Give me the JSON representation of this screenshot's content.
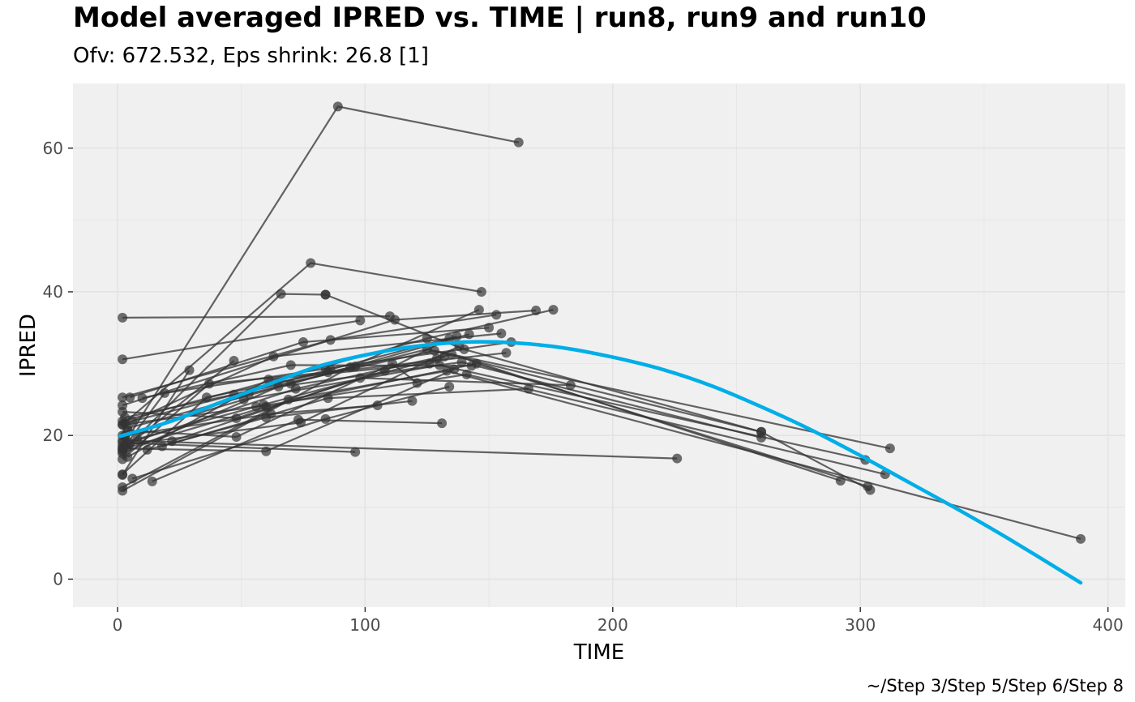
{
  "title": "Model averaged IPRED vs. TIME | run8, run9 and run10",
  "subtitle": "Ofv: 672.532, Eps shrink: 26.8 [1]",
  "caption": "~/Step 3/Step 5/Step 6/Step 8",
  "colors": {
    "panel_bg": "#f0f0f0",
    "grid": "#e3e3e3",
    "individual": "#333333",
    "smooth": "#00aee8"
  },
  "chart_data": {
    "type": "line",
    "xlabel": "TIME",
    "ylabel": "IPRED",
    "xlim": [
      -18,
      407
    ],
    "ylim": [
      -3.9,
      69
    ],
    "xticks": [
      0,
      100,
      200,
      300,
      400
    ],
    "yticks": [
      0,
      20,
      40,
      60
    ],
    "grid": true,
    "legend": "none",
    "individuals": [
      {
        "x": [
          2,
          89,
          162
        ],
        "y": [
          18.5,
          65.8,
          60.8
        ]
      },
      {
        "x": [
          2,
          78,
          147
        ],
        "y": [
          21.5,
          44.0,
          40.0
        ]
      },
      {
        "x": [
          2,
          66,
          84
        ],
        "y": [
          17.8,
          39.7,
          39.6
        ]
      },
      {
        "x": [
          84,
          140,
          260,
          304
        ],
        "y": [
          39.6,
          32.0,
          20.5,
          12.4
        ]
      },
      {
        "x": [
          2,
          110
        ],
        "y": [
          36.4,
          36.6
        ]
      },
      {
        "x": [
          2,
          98
        ],
        "y": [
          30.6,
          36.0
        ]
      },
      {
        "x": [
          2,
          94,
          146
        ],
        "y": [
          12.3,
          29.5,
          37.5
        ]
      },
      {
        "x": [
          2,
          86,
          153
        ],
        "y": [
          25.3,
          33.3,
          36.8
        ]
      },
      {
        "x": [
          2,
          112,
          169
        ],
        "y": [
          24.2,
          36.1,
          37.4
        ]
      },
      {
        "x": [
          2,
          125,
          176
        ],
        "y": [
          22.0,
          33.5,
          37.5
        ]
      },
      {
        "x": [
          5,
          75,
          150
        ],
        "y": [
          25.3,
          33.0,
          35.0
        ]
      },
      {
        "x": [
          2,
          29
        ],
        "y": [
          14.5,
          29.1
        ]
      },
      {
        "x": [
          2,
          47
        ],
        "y": [
          18.0,
          30.4
        ]
      },
      {
        "x": [
          6,
          63,
          155
        ],
        "y": [
          22.0,
          31.0,
          34.2
        ]
      },
      {
        "x": [
          3,
          19,
          84,
          159
        ],
        "y": [
          18.5,
          25.9,
          29.3,
          33.0
        ]
      },
      {
        "x": [
          2,
          37,
          85,
          157
        ],
        "y": [
          16.7,
          27.2,
          28.8,
          31.5
        ]
      },
      {
        "x": [
          2,
          48,
          108,
          134
        ],
        "y": [
          23.3,
          22.4,
          29.0,
          33.5
        ]
      },
      {
        "x": [
          4,
          61,
          126,
          132
        ],
        "y": [
          17.0,
          27.8,
          30.0,
          31.0
        ]
      },
      {
        "x": [
          2,
          36,
          96
        ],
        "y": [
          14.6,
          25.3,
          29.6
        ]
      },
      {
        "x": [
          4,
          48,
          111,
          121
        ],
        "y": [
          20.7,
          19.8,
          30.0,
          27.3
        ]
      },
      {
        "x": [
          10,
          70,
          143
        ],
        "y": [
          25.2,
          29.8,
          29.7
        ]
      },
      {
        "x": [
          8,
          59,
          129
        ],
        "y": [
          19.5,
          24.3,
          30.7
        ]
      },
      {
        "x": [
          12,
          60,
          119
        ],
        "y": [
          18.0,
          22.5,
          24.8
        ]
      },
      {
        "x": [
          14,
          73,
          131
        ],
        "y": [
          13.6,
          22.2,
          21.7
        ]
      },
      {
        "x": [
          3,
          62,
          105
        ],
        "y": [
          20.0,
          23.0,
          24.2
        ]
      },
      {
        "x": [
          5,
          74,
          138
        ],
        "y": [
          18.8,
          21.8,
          32.4
        ]
      },
      {
        "x": [
          2,
          60,
          136
        ],
        "y": [
          18.2,
          17.8,
          29.2
        ]
      },
      {
        "x": [
          2,
          96
        ],
        "y": [
          19.0,
          17.7
        ]
      },
      {
        "x": [
          2,
          226
        ],
        "y": [
          19.3,
          16.8
        ]
      },
      {
        "x": [
          6,
          84,
          134
        ],
        "y": [
          14.0,
          22.3,
          26.8
        ]
      },
      {
        "x": [
          18,
          85,
          166
        ],
        "y": [
          18.5,
          25.2,
          26.5
        ]
      },
      {
        "x": [
          22,
          98,
          183
        ],
        "y": [
          19.2,
          28.0,
          27.0
        ]
      },
      {
        "x": [
          3,
          86,
          137
        ],
        "y": [
          21.7,
          29.2,
          33.8
        ]
      },
      {
        "x": [
          4,
          70,
          142
        ],
        "y": [
          21.0,
          27.2,
          34.1
        ]
      },
      {
        "x": [
          3,
          53,
          125,
          260
        ],
        "y": [
          19.8,
          25.8,
          32.0,
          20.5
        ]
      },
      {
        "x": [
          5,
          72,
          135,
          292
        ],
        "y": [
          19.0,
          26.5,
          31.3,
          13.7
        ]
      },
      {
        "x": [
          4,
          60,
          145,
          303
        ],
        "y": [
          18.3,
          24.0,
          30.0,
          12.9
        ]
      },
      {
        "x": [
          2,
          51,
          130,
          302
        ],
        "y": [
          20.0,
          25.0,
          29.8,
          16.6
        ]
      },
      {
        "x": [
          2,
          56,
          141,
          310
        ],
        "y": [
          21.5,
          24.0,
          28.5,
          14.6
        ]
      },
      {
        "x": [
          3,
          47,
          128,
          312
        ],
        "y": [
          22.5,
          25.7,
          31.8,
          18.2
        ]
      },
      {
        "x": [
          2,
          65,
          139,
          260
        ],
        "y": [
          17.5,
          26.8,
          30.2,
          19.7
        ]
      },
      {
        "x": [
          2,
          69,
          133,
          389
        ],
        "y": [
          12.8,
          25.0,
          29.0,
          5.6
        ]
      }
    ],
    "smooth": {
      "name": "",
      "x": [
        1,
        20,
        40,
        60,
        80,
        100,
        120,
        140,
        160,
        180,
        200,
        220,
        240,
        260,
        280,
        300,
        320,
        340,
        360,
        389
      ],
      "y": [
        19.9,
        21.8,
        24.4,
        27.0,
        29.5,
        31.2,
        32.4,
        33.0,
        32.9,
        32.2,
        30.9,
        29.2,
        26.9,
        24.0,
        20.8,
        17.2,
        13.4,
        9.6,
        5.6,
        -0.5
      ]
    }
  }
}
